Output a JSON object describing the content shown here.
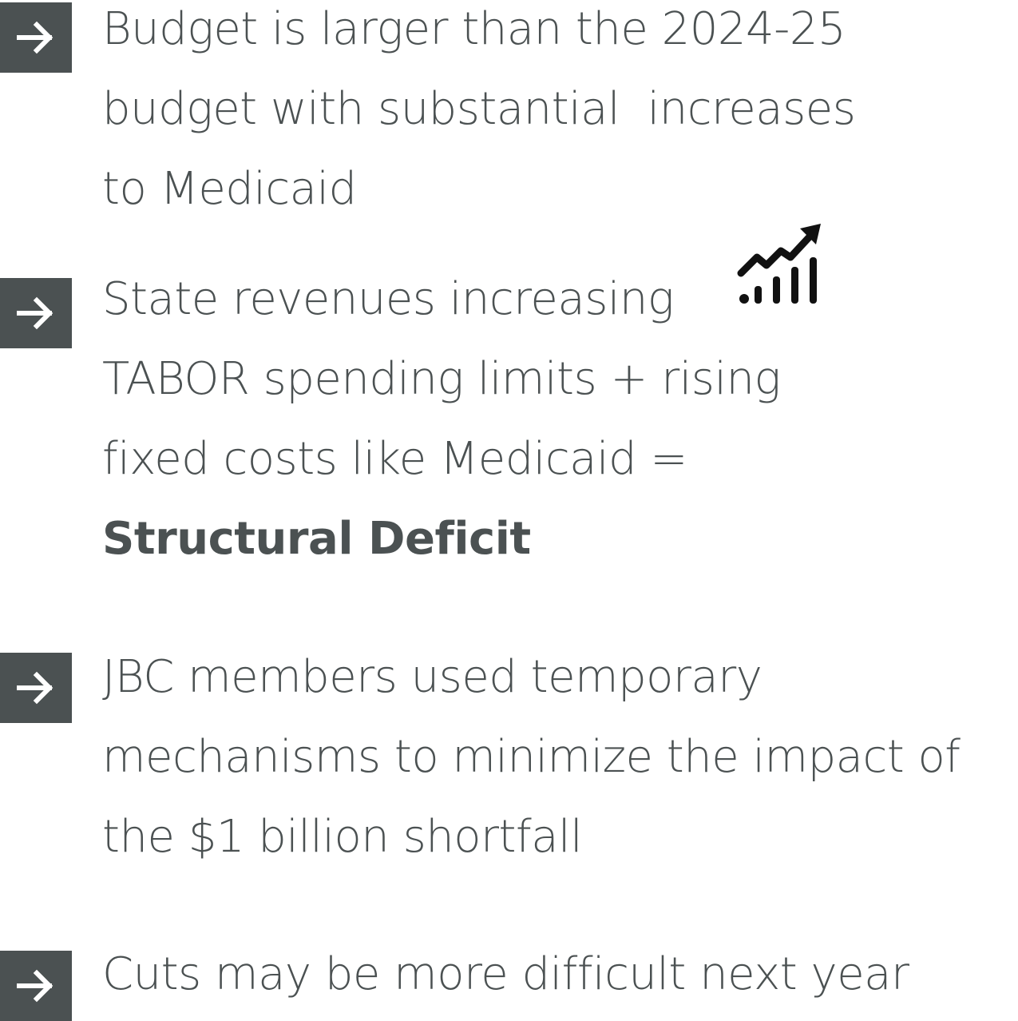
{
  "items": [
    {
      "lines": [
        "Budget is larger than the 2024-25",
        "budget with substantial  increases",
        "to Medicaid"
      ]
    },
    {
      "lines": [
        "State revenues increasing",
        "TABOR spending limits + rising",
        "fixed costs like Medicaid ="
      ],
      "emphasis": "Structural Deficit"
    },
    {
      "lines": [
        "JBC members used temporary",
        "mechanisms to minimize the impact of",
        "the $1 billion shortfall"
      ]
    },
    {
      "lines": [
        "Cuts may be more difficult next year"
      ]
    }
  ]
}
